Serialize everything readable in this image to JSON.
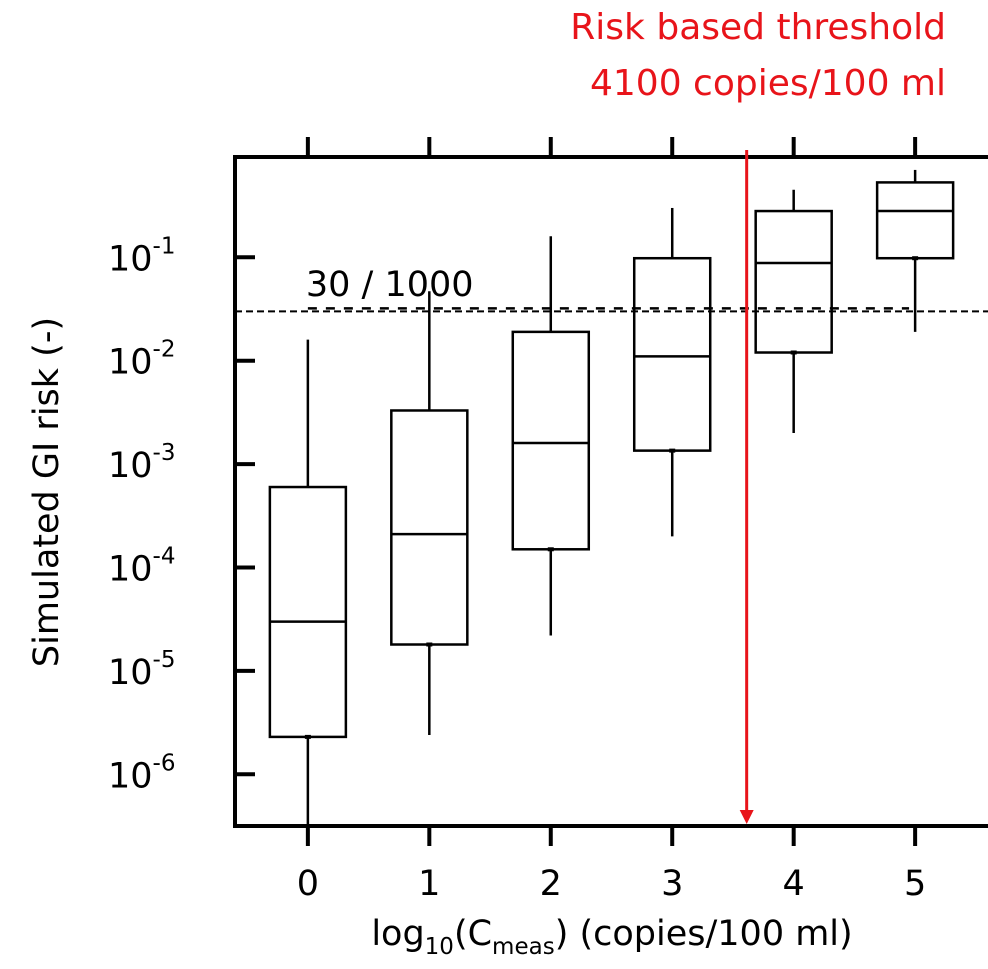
{
  "annotation": {
    "line1": "Risk based threshold",
    "line2": "4100 copies/100 ml",
    "color": "#e8141a"
  },
  "chart_data": {
    "type": "box",
    "ylabel": "Simulated GI risk (-)",
    "xlabel": {
      "prefix": "log",
      "prefix_sub": "10",
      "mid": "(C",
      "mid_sub": "meas",
      "suffix": ") (copies/100 ml)"
    },
    "y_scale": "log",
    "ylim_log10": [
      -6.5,
      -0.03
    ],
    "xlim": [
      -0.6,
      5.6
    ],
    "y_ticks": [
      {
        "exp": -1,
        "base": "10",
        "sup": "-1"
      },
      {
        "exp": -2,
        "base": "10",
        "sup": "-2"
      },
      {
        "exp": -3,
        "base": "10",
        "sup": "-3"
      },
      {
        "exp": -4,
        "base": "10",
        "sup": "-4"
      },
      {
        "exp": -5,
        "base": "10",
        "sup": "-5"
      },
      {
        "exp": -6,
        "base": "10",
        "sup": "-6"
      }
    ],
    "x_ticks": [
      "0",
      "1",
      "2",
      "3",
      "4",
      "5"
    ],
    "boxes": [
      {
        "x": 0,
        "whisker_low": 3e-07,
        "q1": 2.3e-06,
        "median": 3e-05,
        "q3": 0.0006,
        "whisker_high": 0.016
      },
      {
        "x": 1,
        "whisker_low": 2.4e-06,
        "q1": 1.8e-05,
        "median": 0.00021,
        "q3": 0.0033,
        "whisker_high": 0.047
      },
      {
        "x": 2,
        "whisker_low": 2.2e-05,
        "q1": 0.00015,
        "median": 0.0016,
        "q3": 0.019,
        "whisker_high": 0.16
      },
      {
        "x": 3,
        "whisker_low": 0.0002,
        "q1": 0.00135,
        "median": 0.011,
        "q3": 0.098,
        "whisker_high": 0.3
      },
      {
        "x": 4,
        "whisker_low": 0.002,
        "q1": 0.012,
        "median": 0.088,
        "q3": 0.28,
        "whisker_high": 0.45
      },
      {
        "x": 5,
        "whisker_low": 0.019,
        "q1": 0.098,
        "median": 0.28,
        "q3": 0.53,
        "whisker_high": 0.7
      }
    ],
    "reference_line": {
      "value": 0.03,
      "label": "30 / 1000",
      "style": "dashed"
    },
    "threshold_x": 3.613,
    "threshold_color": "#e8141a"
  }
}
